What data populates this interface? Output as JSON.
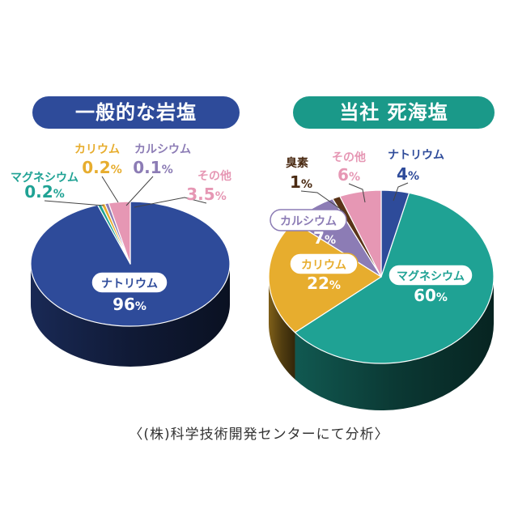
{
  "chart_data": [
    {
      "type": "pie",
      "title": "一般的な岩塩",
      "title_color": "#2e4b9a",
      "view": "3d-tilted",
      "start": "12 o'clock, clockwise",
      "slices": [
        {
          "label": "ナトリウム",
          "value": 96,
          "value_text": "96",
          "unit": "%",
          "color": "#2e4b9a",
          "label_style": "pill-inside"
        },
        {
          "label": "マグネシウム",
          "value": 0.2,
          "value_text": "0.2",
          "unit": "%",
          "color": "#1fa294",
          "label_style": "outside"
        },
        {
          "label": "カリウム",
          "value": 0.2,
          "value_text": "0.2",
          "unit": "%",
          "color": "#e7ad2e",
          "label_style": "outside"
        },
        {
          "label": "カルシウム",
          "value": 0.1,
          "value_text": "0.1",
          "unit": "%",
          "color": "#8c7cb5",
          "label_style": "outside"
        },
        {
          "label": "その他",
          "value": 3.5,
          "value_text": "3.5",
          "unit": "%",
          "color": "#e697b4",
          "label_style": "outside"
        }
      ]
    },
    {
      "type": "pie",
      "title": "当社 死海塩",
      "title_color": "#1a9989",
      "view": "3d-tilted",
      "start": "12 o'clock, clockwise",
      "slices": [
        {
          "label": "ナトリウム",
          "value": 4,
          "value_text": "4",
          "unit": "%",
          "color": "#2e4b9a",
          "label_style": "outside"
        },
        {
          "label": "マグネシウム",
          "value": 60,
          "value_text": "60",
          "unit": "%",
          "color": "#1fa294",
          "label_style": "pill-inside"
        },
        {
          "label": "カリウム",
          "value": 22,
          "value_text": "22",
          "unit": "%",
          "color": "#e7ad2e",
          "label_style": "pill-inside"
        },
        {
          "label": "カルシウム",
          "value": 7,
          "value_text": "7",
          "unit": "%",
          "color": "#8c7cb5",
          "label_style": "pill-inside"
        },
        {
          "label": "臭素",
          "value": 1,
          "value_text": "1",
          "unit": "%",
          "color": "#5a3418",
          "label_style": "outside"
        },
        {
          "label": "その他",
          "value": 6,
          "value_text": "6",
          "unit": "%",
          "color": "#e697b4",
          "label_style": "outside"
        }
      ]
    }
  ],
  "footer": {
    "source": "〈(株)科学技術開発センターにて分析〉"
  }
}
